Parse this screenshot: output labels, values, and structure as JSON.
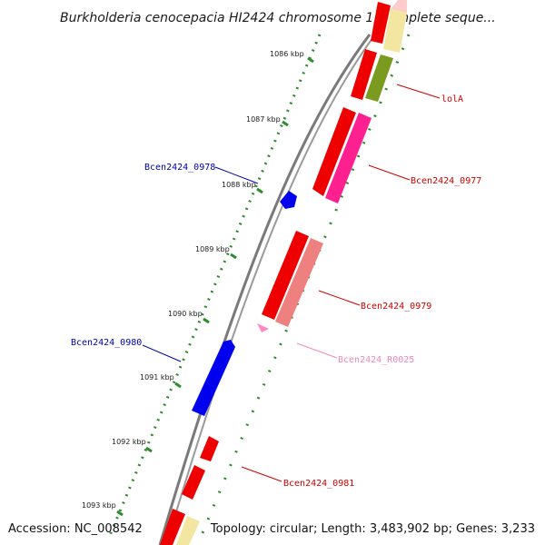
{
  "title": "Burkholderia cenocepacia HI2424 chromosome 1, complete seque...",
  "accession": "Accession: NC_008542",
  "topology": "Topology: circular; Length: 3,483,902 bp; Genes: 3,233",
  "ticks": [
    "1086 kbp",
    "1087 kbp",
    "1088 kbp",
    "1089 kbp",
    "1090 kbp",
    "1091 kbp",
    "1092 kbp",
    "1093 kbp"
  ],
  "genes": [
    {
      "label": "lolA",
      "color": "#cc0000"
    },
    {
      "label": "Bcen2424_0977",
      "color": "#cc0000"
    },
    {
      "label": "Bcen2424_0978",
      "color": "#0000aa"
    },
    {
      "label": "Bcen2424_0979",
      "color": "#cc0000"
    },
    {
      "label": "Bcen2424_R0025",
      "color": "#ee88bb"
    },
    {
      "label": "Bcen2424_0980",
      "color": "#0000aa"
    },
    {
      "label": "Bcen2424_0981",
      "color": "#cc0000"
    }
  ],
  "colors": {
    "cds": "#ff0000",
    "cds_partner": "#ff2090",
    "cds_light": "#ee8080",
    "cds_olive": "#7a9a20",
    "cds_yellow": "#f2e6a0",
    "reverse_cds": "#0000ff",
    "rna": "#ff88c0",
    "backbone": "#7a7a7a",
    "tick_dots": "#2e8b2e"
  }
}
